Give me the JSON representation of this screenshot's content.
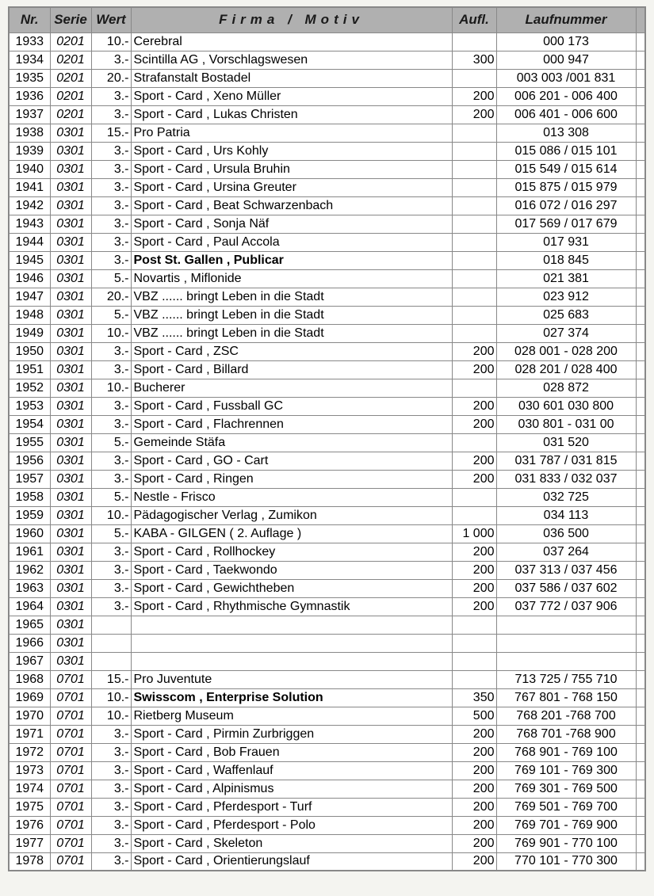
{
  "headers": {
    "nr": "Nr.",
    "serie": "Serie",
    "wert": "Wert",
    "firma": "Firma / Motiv",
    "aufl": "Aufl.",
    "lauf": "Laufnummer"
  },
  "rows": [
    {
      "nr": "1933",
      "serie": "0201",
      "wert": "10.-",
      "firma": "Cerebral",
      "bold": false,
      "aufl": "",
      "lauf": "000 173"
    },
    {
      "nr": "1934",
      "serie": "0201",
      "wert": "3.-",
      "firma": "Scintilla  AG  ,  Vorschlagswesen",
      "bold": false,
      "aufl": "300",
      "lauf": "000 947"
    },
    {
      "nr": "1935",
      "serie": "0201",
      "wert": "20.-",
      "firma": "Strafanstalt  Bostadel",
      "bold": false,
      "aufl": "",
      "lauf": "003 003 /001 831"
    },
    {
      "nr": "1936",
      "serie": "0201",
      "wert": "3.-",
      "firma": "Sport - Card  ,  Xeno  Müller",
      "bold": false,
      "aufl": "200",
      "lauf": "006 201 - 006 400"
    },
    {
      "nr": "1937",
      "serie": "0201",
      "wert": "3.-",
      "firma": "Sport - Card  ,  Lukas  Christen",
      "bold": false,
      "aufl": "200",
      "lauf": "006 401 - 006 600"
    },
    {
      "nr": "1938",
      "serie": "0301",
      "wert": "15.-",
      "firma": "Pro  Patria",
      "bold": false,
      "aufl": "",
      "lauf": "013 308"
    },
    {
      "nr": "1939",
      "serie": "0301",
      "wert": "3.-",
      "firma": "Sport - Card  ,  Urs  Kohly",
      "bold": false,
      "aufl": "",
      "lauf": "015 086 / 015 101"
    },
    {
      "nr": "1940",
      "serie": "0301",
      "wert": "3.-",
      "firma": "Sport - Card  ,  Ursula  Bruhin",
      "bold": false,
      "aufl": "",
      "lauf": "015 549 / 015 614"
    },
    {
      "nr": "1941",
      "serie": "0301",
      "wert": "3.-",
      "firma": "Sport - Card  ,  Ursina  Greuter",
      "bold": false,
      "aufl": "",
      "lauf": "015 875 / 015 979"
    },
    {
      "nr": "1942",
      "serie": "0301",
      "wert": "3.-",
      "firma": "Sport - Card  ,  Beat  Schwarzenbach",
      "bold": false,
      "aufl": "",
      "lauf": "016 072 / 016 297"
    },
    {
      "nr": "1943",
      "serie": "0301",
      "wert": "3.-",
      "firma": "Sport - Card  ,  Sonja  Näf",
      "bold": false,
      "aufl": "",
      "lauf": "017 569 / 017 679"
    },
    {
      "nr": "1944",
      "serie": "0301",
      "wert": "3.-",
      "firma": "Sport - Card  ,  Paul  Accola",
      "bold": false,
      "aufl": "",
      "lauf": "017 931"
    },
    {
      "nr": "1945",
      "serie": "0301",
      "wert": "3.-",
      "firma": "Post  St.  Gallen  ,  Publicar",
      "bold": true,
      "aufl": "",
      "lauf": "018 845"
    },
    {
      "nr": "1946",
      "serie": "0301",
      "wert": "5.-",
      "firma": "Novartis  ,  Miflonide",
      "bold": false,
      "aufl": "",
      "lauf": "021 381"
    },
    {
      "nr": "1947",
      "serie": "0301",
      "wert": "20.-",
      "firma": "VBZ  ......  bringt  Leben  in  die  Stadt",
      "bold": false,
      "aufl": "",
      "lauf": "023 912"
    },
    {
      "nr": "1948",
      "serie": "0301",
      "wert": "5.-",
      "firma": "VBZ  ......  bringt  Leben  in  die  Stadt",
      "bold": false,
      "aufl": "",
      "lauf": "025 683"
    },
    {
      "nr": "1949",
      "serie": "0301",
      "wert": "10.-",
      "firma": "VBZ  ......  bringt  Leben  in  die  Stadt",
      "bold": false,
      "aufl": "",
      "lauf": "027 374"
    },
    {
      "nr": "1950",
      "serie": "0301",
      "wert": "3.-",
      "firma": "Sport - Card  ,  ZSC",
      "bold": false,
      "aufl": "200",
      "lauf": "028 001 - 028 200"
    },
    {
      "nr": "1951",
      "serie": "0301",
      "wert": "3.-",
      "firma": "Sport - Card  ,  Billard",
      "bold": false,
      "aufl": "200",
      "lauf": "028 201 / 028 400"
    },
    {
      "nr": "1952",
      "serie": "0301",
      "wert": "10.-",
      "firma": "Bucherer",
      "bold": false,
      "aufl": "",
      "lauf": "028 872"
    },
    {
      "nr": "1953",
      "serie": "0301",
      "wert": "3.-",
      "firma": "Sport - Card  ,  Fussball  GC",
      "bold": false,
      "aufl": "200",
      "lauf": "030 601 030 800"
    },
    {
      "nr": "1954",
      "serie": "0301",
      "wert": "3.-",
      "firma": "Sport - Card  ,  Flachrennen",
      "bold": false,
      "aufl": "200",
      "lauf": "030 801 - 031 00"
    },
    {
      "nr": "1955",
      "serie": "0301",
      "wert": "5.-",
      "firma": "Gemeinde  Stäfa",
      "bold": false,
      "aufl": "",
      "lauf": "031 520"
    },
    {
      "nr": "1956",
      "serie": "0301",
      "wert": "3.-",
      "firma": "Sport - Card  ,  GO - Cart",
      "bold": false,
      "aufl": "200",
      "lauf": "031 787 / 031 815"
    },
    {
      "nr": "1957",
      "serie": "0301",
      "wert": "3.-",
      "firma": "Sport - Card  ,  Ringen",
      "bold": false,
      "aufl": "200",
      "lauf": "031 833 / 032 037"
    },
    {
      "nr": "1958",
      "serie": "0301",
      "wert": "5.-",
      "firma": "Nestle - Frisco",
      "bold": false,
      "aufl": "",
      "lauf": "032 725"
    },
    {
      "nr": "1959",
      "serie": "0301",
      "wert": "10.-",
      "firma": "Pädagogischer  Verlag , Zumikon",
      "bold": false,
      "aufl": "",
      "lauf": "034 113"
    },
    {
      "nr": "1960",
      "serie": "0301",
      "wert": "5.-",
      "firma": "KABA - GILGEN   ( 2. Auflage )",
      "bold": false,
      "aufl": "1 000",
      "lauf": "036 500"
    },
    {
      "nr": "1961",
      "serie": "0301",
      "wert": "3.-",
      "firma": "Sport - Card  ,  Rollhockey",
      "bold": false,
      "aufl": "200",
      "lauf": "037 264"
    },
    {
      "nr": "1962",
      "serie": "0301",
      "wert": "3.-",
      "firma": "Sport - Card  ,  Taekwondo",
      "bold": false,
      "aufl": "200",
      "lauf": "037 313 / 037 456"
    },
    {
      "nr": "1963",
      "serie": "0301",
      "wert": "3.-",
      "firma": "Sport - Card  ,  Gewichtheben",
      "bold": false,
      "aufl": "200",
      "lauf": "037 586 / 037 602"
    },
    {
      "nr": "1964",
      "serie": "0301",
      "wert": "3.-",
      "firma": "Sport - Card  ,  Rhythmische  Gymnastik",
      "bold": false,
      "aufl": "200",
      "lauf": "037 772 / 037 906"
    },
    {
      "nr": "1965",
      "serie": "0301",
      "wert": "",
      "firma": "",
      "bold": false,
      "aufl": "",
      "lauf": ""
    },
    {
      "nr": "1966",
      "serie": "0301",
      "wert": "",
      "firma": "",
      "bold": false,
      "aufl": "",
      "lauf": ""
    },
    {
      "nr": "1967",
      "serie": "0301",
      "wert": "",
      "firma": "",
      "bold": false,
      "aufl": "",
      "lauf": ""
    },
    {
      "nr": "1968",
      "serie": "0701",
      "wert": "15.-",
      "firma": "Pro Juventute",
      "bold": false,
      "aufl": "",
      "lauf": "713 725 / 755 710"
    },
    {
      "nr": "1969",
      "serie": "0701",
      "wert": "10.-",
      "firma": "Swisscom , Enterprise Solution",
      "bold": true,
      "aufl": "350",
      "lauf": "767 801 - 768 150"
    },
    {
      "nr": "1970",
      "serie": "0701",
      "wert": "10.-",
      "firma": "Rietberg  Museum",
      "bold": false,
      "aufl": "500",
      "lauf": "768 201 -768 700"
    },
    {
      "nr": "1971",
      "serie": "0701",
      "wert": "3.-",
      "firma": "Sport - Card  ,  Pirmin  Zurbriggen",
      "bold": false,
      "aufl": "200",
      "lauf": "768 701 -768 900"
    },
    {
      "nr": "1972",
      "serie": "0701",
      "wert": "3.-",
      "firma": "Sport - Card  ,  Bob  Frauen",
      "bold": false,
      "aufl": "200",
      "lauf": "768 901 - 769 100"
    },
    {
      "nr": "1973",
      "serie": "0701",
      "wert": "3.-",
      "firma": "Sport - Card  ,  Waffenlauf",
      "bold": false,
      "aufl": "200",
      "lauf": "769 101 - 769 300"
    },
    {
      "nr": "1974",
      "serie": "0701",
      "wert": "3.-",
      "firma": "Sport - Card  ,  Alpinismus",
      "bold": false,
      "aufl": "200",
      "lauf": "769 301 - 769 500"
    },
    {
      "nr": "1975",
      "serie": "0701",
      "wert": "3.-",
      "firma": "Sport - Card  ,  Pferdesport - Turf",
      "bold": false,
      "aufl": "200",
      "lauf": "769 501 - 769 700"
    },
    {
      "nr": "1976",
      "serie": "0701",
      "wert": "3.-",
      "firma": "Sport - Card  ,  Pferdesport - Polo",
      "bold": false,
      "aufl": "200",
      "lauf": "769 701 - 769 900"
    },
    {
      "nr": "1977",
      "serie": "0701",
      "wert": "3.-",
      "firma": "Sport - Card  ,  Skeleton",
      "bold": false,
      "aufl": "200",
      "lauf": "769 901 - 770 100"
    },
    {
      "nr": "1978",
      "serie": "0701",
      "wert": "3.-",
      "firma": "Sport - Card  ,  Orientierungslauf",
      "bold": false,
      "aufl": "200",
      "lauf": "770 101 - 770 300"
    }
  ]
}
